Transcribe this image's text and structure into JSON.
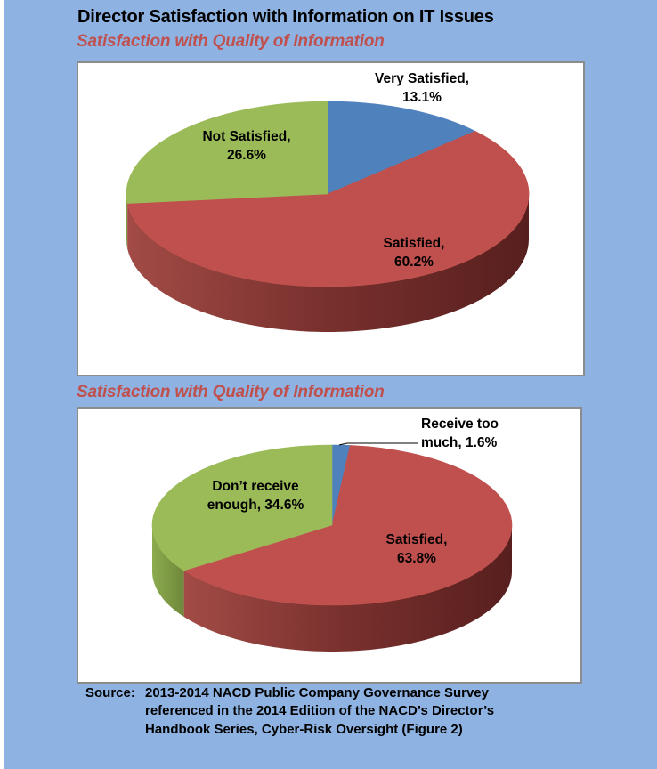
{
  "page": {
    "title": "Director Satisfaction with Information on IT Issues",
    "source": {
      "label": "Source:",
      "lines": [
        "2013-2014 NACD Public Company Governance Survey",
        "referenced in the 2014 Edition of the NACD’s Director’s",
        "Handbook Series, Cyber-Risk Oversight (Figure 2)"
      ]
    }
  },
  "colors": {
    "background": "#8EB3E2",
    "left_strip": "#FFFFFF",
    "panel_background": "#FFFFFF",
    "panel_border": "#8C8C8C",
    "title_text": "#000000",
    "subtitle_text": "#C0504D",
    "data_label_text": "#000000",
    "slice_blue": "#4F81BD",
    "slice_red": "#C0504D",
    "slice_green": "#9BBB59"
  },
  "chart_data": [
    {
      "type": "pie",
      "style": "3d",
      "subtitle": "Satisfaction with Quality of Information",
      "unit": "%",
      "categories": [
        "Very Satisfied",
        "Satisfied",
        "Not Satisfied"
      ],
      "values": [
        13.1,
        60.2,
        26.6
      ],
      "slices": [
        {
          "name": "Very Satisfied",
          "value": 13.1,
          "color": "#4F81BD",
          "side": "#3A6291",
          "label_lines": [
            "Very Satisfied,",
            "13.1%"
          ]
        },
        {
          "name": "Satisfied",
          "value": 60.2,
          "color": "#C0504D",
          "side": [
            "#A24B46",
            "#78302D",
            "#571F1E"
          ],
          "label_lines": [
            "Satisfied,",
            "60.2%"
          ]
        },
        {
          "name": "Not Satisfied",
          "value": 26.6,
          "color": "#9BBB59",
          "side": [
            "#8CAB4E",
            "#6F883B"
          ],
          "label_lines": [
            "Not Satisfied,",
            "26.6%"
          ]
        }
      ]
    },
    {
      "type": "pie",
      "style": "3d",
      "subtitle": "Satisfaction with Quality of Information",
      "unit": "%",
      "categories": [
        "Receive too much",
        "Satisfied",
        "Don’t receive enough"
      ],
      "values": [
        1.6,
        63.8,
        34.6
      ],
      "slices": [
        {
          "name": "Receive too much",
          "value": 1.6,
          "color": "#4F81BD",
          "side": "#3A6291",
          "label_lines": [
            "Receive too",
            "much, 1.6%"
          ]
        },
        {
          "name": "Satisfied",
          "value": 63.8,
          "color": "#C0504D",
          "side": [
            "#A24B46",
            "#78302D",
            "#571F1E"
          ],
          "label_lines": [
            "Satisfied,",
            "63.8%"
          ]
        },
        {
          "name": "Don’t receive enough",
          "value": 34.6,
          "color": "#9BBB59",
          "side": [
            "#8CAB4E",
            "#6F883B"
          ],
          "label_lines": [
            "Don’t receive",
            "enough, 34.6%"
          ]
        }
      ]
    }
  ]
}
